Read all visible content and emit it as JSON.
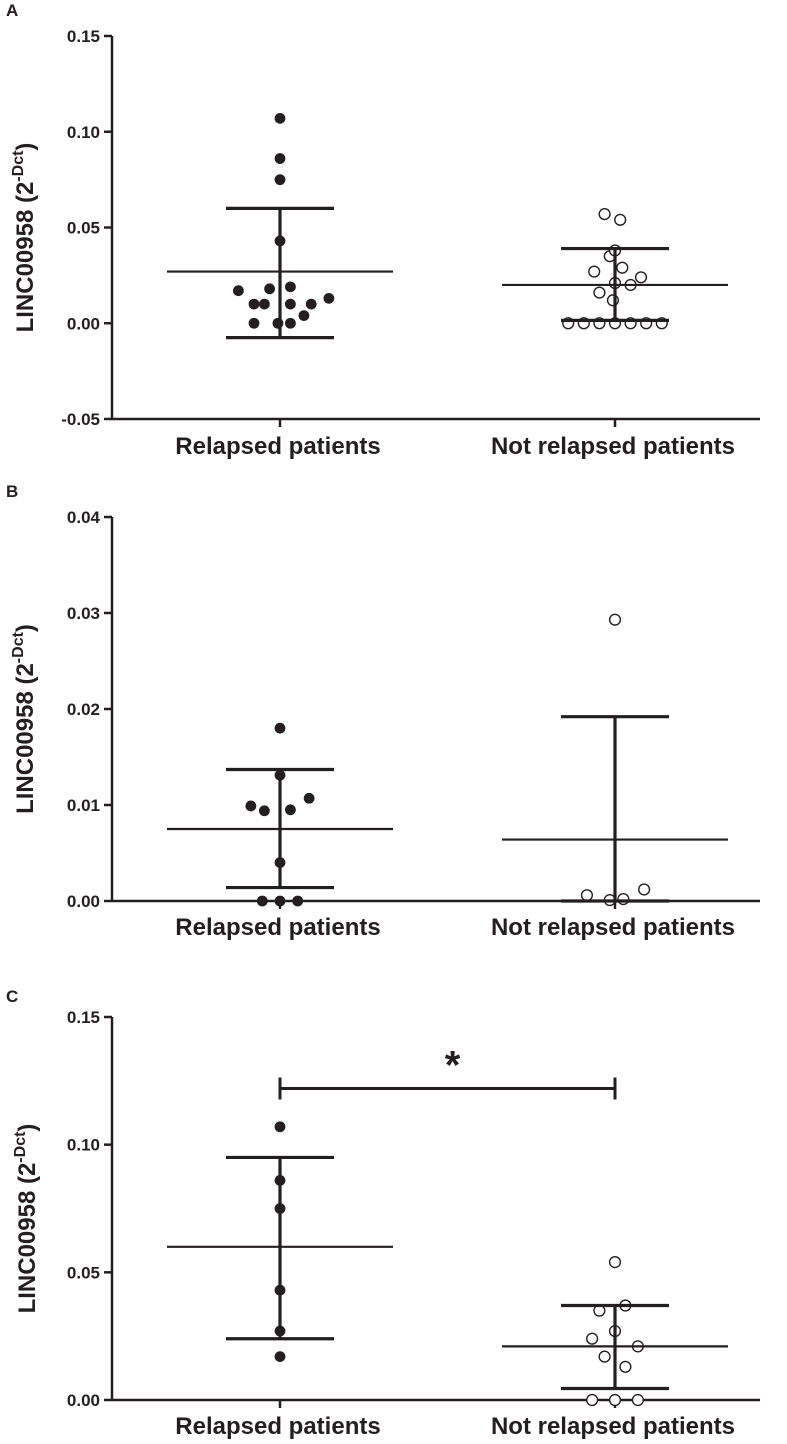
{
  "figure": {
    "y_axis_title": "LINC00958 (2",
    "y_axis_superscript": "-Dct",
    "y_axis_title_close": ")"
  },
  "chart_data": [
    {
      "type": "scatter",
      "panel": "A",
      "ylim": [
        -0.05,
        0.15
      ],
      "yticks": [
        "-0.05",
        "0.00",
        "0.05",
        "0.10",
        "0.15"
      ],
      "ytick_values": [
        -0.05,
        0.0,
        0.05,
        0.1,
        0.15
      ],
      "categories": [
        "Relapsed patients",
        "Not relapsed patients"
      ],
      "series": [
        {
          "name": "Relapsed patients",
          "marker": "filled",
          "mean": 0.027,
          "sd_low": -0.0075,
          "sd_high": 0.06,
          "points": [
            [
              0,
              0.107
            ],
            [
              0,
              0.086
            ],
            [
              0,
              0.075
            ],
            [
              0,
              0.043
            ],
            [
              -0.4,
              0.017
            ],
            [
              -0.25,
              0.01
            ],
            [
              -0.1,
              0.018
            ],
            [
              0.1,
              0.019
            ],
            [
              0.3,
              0.01
            ],
            [
              0.47,
              0.013
            ],
            [
              -0.15,
              0.01
            ],
            [
              0.1,
              0.01
            ],
            [
              0.23,
              0.004
            ],
            [
              -0.25,
              0.0
            ],
            [
              -0.02,
              0.0
            ],
            [
              0.1,
              0.0
            ]
          ]
        },
        {
          "name": "Not relapsed patients",
          "marker": "open",
          "mean": 0.02,
          "sd_low": 0.0015,
          "sd_high": 0.039,
          "points": [
            [
              -0.1,
              0.057
            ],
            [
              0.05,
              0.054
            ],
            [
              -0.05,
              0.035
            ],
            [
              0.0,
              0.038
            ],
            [
              -0.2,
              0.027
            ],
            [
              0.07,
              0.029
            ],
            [
              0.25,
              0.024
            ],
            [
              0.0,
              0.021
            ],
            [
              0.15,
              0.02
            ],
            [
              -0.15,
              0.016
            ],
            [
              -0.02,
              0.012
            ],
            [
              -0.45,
              0.0
            ],
            [
              -0.3,
              0.0
            ],
            [
              -0.15,
              0.0
            ],
            [
              0.0,
              0.0
            ],
            [
              0.15,
              0.0
            ],
            [
              0.3,
              0.0
            ],
            [
              0.45,
              0.0
            ]
          ]
        }
      ]
    },
    {
      "type": "scatter",
      "panel": "B",
      "ylim": [
        0.0,
        0.04
      ],
      "yticks": [
        "0.00",
        "0.01",
        "0.02",
        "0.03",
        "0.04"
      ],
      "ytick_values": [
        0.0,
        0.01,
        0.02,
        0.03,
        0.04
      ],
      "categories": [
        "Relapsed patients",
        "Not relapsed patients"
      ],
      "series": [
        {
          "name": "Relapsed patients",
          "marker": "filled",
          "mean": 0.0075,
          "sd_low": 0.0014,
          "sd_high": 0.0137,
          "points": [
            [
              0,
              0.018
            ],
            [
              0,
              0.0131
            ],
            [
              0.28,
              0.0107
            ],
            [
              -0.28,
              0.0099
            ],
            [
              -0.15,
              0.0094
            ],
            [
              0.1,
              0.0095
            ],
            [
              0,
              0.004
            ],
            [
              -0.17,
              0.0
            ],
            [
              0.0,
              0.0
            ],
            [
              0.17,
              0.0
            ]
          ]
        },
        {
          "name": "Not relapsed patients",
          "marker": "open",
          "mean": 0.0064,
          "sd_low": 0.0,
          "sd_high": 0.0192,
          "points": [
            [
              0,
              0.0293
            ],
            [
              -0.27,
              0.0006
            ],
            [
              -0.05,
              0.0001
            ],
            [
              0.08,
              0.0002
            ],
            [
              0.28,
              0.0012
            ]
          ]
        }
      ]
    },
    {
      "type": "scatter",
      "panel": "C",
      "ylim": [
        0.0,
        0.15
      ],
      "yticks": [
        "0.00",
        "0.05",
        "0.10",
        "0.15"
      ],
      "ytick_values": [
        0.0,
        0.05,
        0.1,
        0.15
      ],
      "categories": [
        "Relapsed patients",
        "Not relapsed patients"
      ],
      "significance": {
        "label": "*",
        "level": 0.122
      },
      "series": [
        {
          "name": "Relapsed patients",
          "marker": "filled",
          "mean": 0.06,
          "sd_low": 0.024,
          "sd_high": 0.095,
          "points": [
            [
              0,
              0.107
            ],
            [
              0,
              0.086
            ],
            [
              0,
              0.075
            ],
            [
              0,
              0.043
            ],
            [
              0,
              0.027
            ],
            [
              0,
              0.017
            ]
          ]
        },
        {
          "name": "Not relapsed patients",
          "marker": "open",
          "mean": 0.021,
          "sd_low": 0.0045,
          "sd_high": 0.037,
          "points": [
            [
              0,
              0.054
            ],
            [
              -0.15,
              0.035
            ],
            [
              0.1,
              0.037
            ],
            [
              -0.22,
              0.024
            ],
            [
              0.0,
              0.027
            ],
            [
              0.22,
              0.021
            ],
            [
              -0.1,
              0.017
            ],
            [
              0.1,
              0.013
            ],
            [
              -0.22,
              0.0
            ],
            [
              0.0,
              0.0
            ],
            [
              0.22,
              0.0
            ]
          ]
        }
      ]
    }
  ]
}
